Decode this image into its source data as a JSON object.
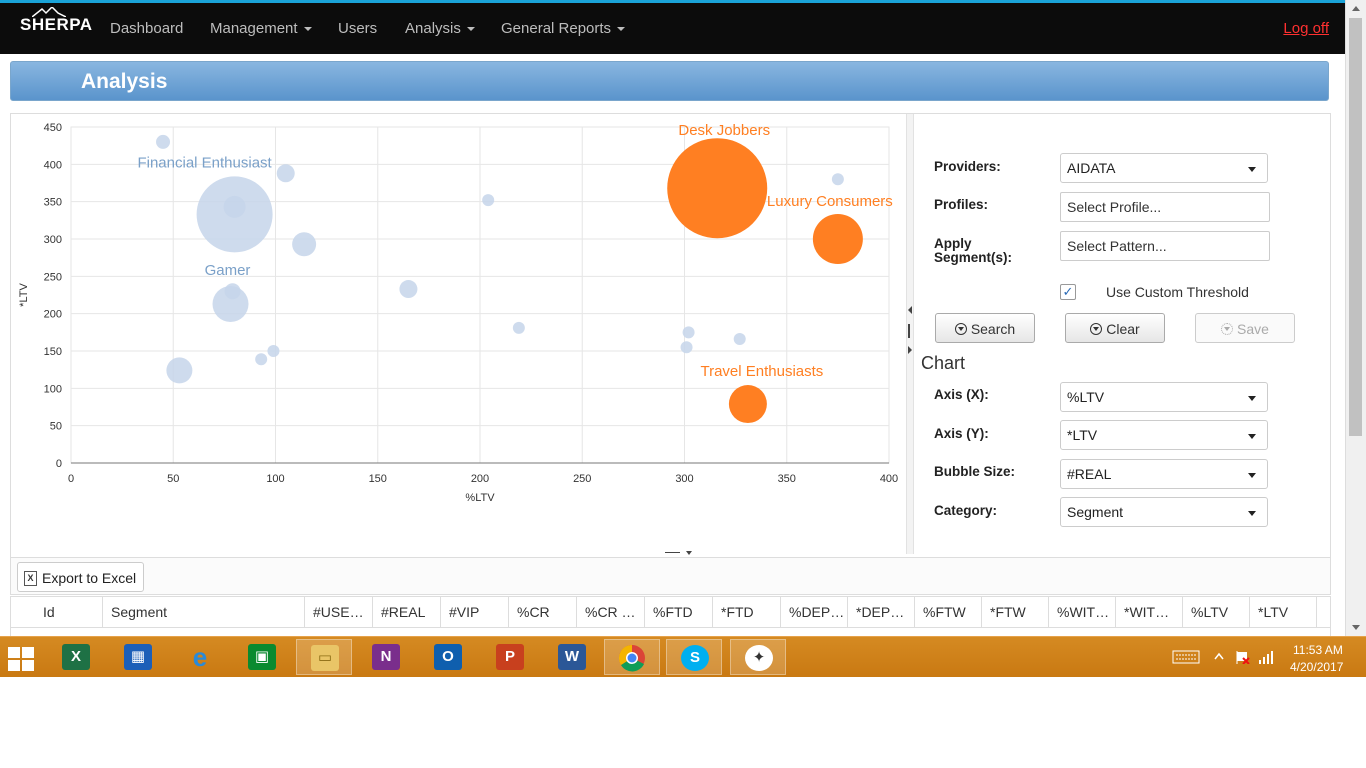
{
  "nav": {
    "brand": "SHERPA",
    "items": [
      {
        "label": "Dashboard",
        "dropdown": false
      },
      {
        "label": "Management",
        "dropdown": true
      },
      {
        "label": "Users",
        "dropdown": false
      },
      {
        "label": "Analysis",
        "dropdown": true
      },
      {
        "label": "General Reports",
        "dropdown": true
      }
    ],
    "logoff": "Log off"
  },
  "page": {
    "title": "Analysis"
  },
  "chart_data": {
    "type": "scatter",
    "title": "",
    "xlabel": "%LTV",
    "ylabel": "*LTV",
    "xlim": [
      0,
      400
    ],
    "ylim": [
      0,
      450
    ],
    "xticks": [
      0,
      50,
      100,
      150,
      200,
      250,
      300,
      350,
      400
    ],
    "yticks": [
      0,
      50,
      100,
      150,
      200,
      250,
      300,
      350,
      400,
      450
    ],
    "grid": true,
    "colors": {
      "default": "#c5d5ea",
      "highlight": "#ff7f22",
      "label_default": "#7aa0c8",
      "label_highlight": "#ff7f22"
    },
    "points": [
      {
        "x": 45,
        "y": 430,
        "size": 7,
        "label": "",
        "highlight": false
      },
      {
        "x": 105,
        "y": 388,
        "size": 9,
        "label": "",
        "highlight": false
      },
      {
        "x": 80,
        "y": 333,
        "size": 38,
        "label": "Financial Enthusiast",
        "highlight": false
      },
      {
        "x": 80,
        "y": 343,
        "size": 11,
        "label": "",
        "highlight": false
      },
      {
        "x": 114,
        "y": 293,
        "size": 12,
        "label": "",
        "highlight": false
      },
      {
        "x": 78,
        "y": 213,
        "size": 18,
        "label": "Gamer",
        "highlight": false
      },
      {
        "x": 79,
        "y": 230,
        "size": 8,
        "label": "",
        "highlight": false
      },
      {
        "x": 53,
        "y": 124,
        "size": 13,
        "label": "",
        "highlight": false
      },
      {
        "x": 93,
        "y": 139,
        "size": 6,
        "label": "",
        "highlight": false
      },
      {
        "x": 99,
        "y": 150,
        "size": 6,
        "label": "",
        "highlight": false
      },
      {
        "x": 165,
        "y": 233,
        "size": 9,
        "label": "",
        "highlight": false
      },
      {
        "x": 204,
        "y": 352,
        "size": 6,
        "label": "",
        "highlight": false
      },
      {
        "x": 219,
        "y": 181,
        "size": 6,
        "label": "",
        "highlight": false
      },
      {
        "x": 301,
        "y": 155,
        "size": 6,
        "label": "",
        "highlight": false
      },
      {
        "x": 302,
        "y": 175,
        "size": 6,
        "label": "",
        "highlight": false
      },
      {
        "x": 327,
        "y": 166,
        "size": 6,
        "label": "",
        "highlight": false
      },
      {
        "x": 375,
        "y": 380,
        "size": 6,
        "label": "",
        "highlight": false
      },
      {
        "x": 316,
        "y": 368,
        "size": 50,
        "label": "Desk Jobbers",
        "highlight": true
      },
      {
        "x": 375,
        "y": 300,
        "size": 25,
        "label": "Luxury Consumers",
        "highlight": true
      },
      {
        "x": 331,
        "y": 79,
        "size": 19,
        "label": "Travel Enthusiasts",
        "highlight": true
      }
    ]
  },
  "form": {
    "providers_label": "Providers:",
    "providers_value": "AIDATA",
    "profiles_label": "Profiles:",
    "profiles_placeholder": "Select Profile...",
    "segments_label": "Apply\nSegment(s):",
    "segments_placeholder": "Select Pattern...",
    "custom_threshold_label": "Use Custom Threshold",
    "custom_threshold_checked": "✓",
    "search_label": "Search",
    "clear_label": "Clear",
    "save_label": "Save",
    "chart_title": "Chart",
    "axis_x_label": "Axis (X):",
    "axis_x_value": "%LTV",
    "axis_y_label": "Axis (Y):",
    "axis_y_value": "*LTV",
    "bubble_label": "Bubble Size:",
    "bubble_value": "#REAL",
    "category_label": "Category:",
    "category_value": "Segment"
  },
  "grid": {
    "export_label": "Export to Excel",
    "columns": [
      "Id",
      "Segment",
      "#USE…",
      "#REAL",
      "#VIP",
      "%CR",
      "%CR …",
      "%FTD",
      "*FTD",
      "%DEP…",
      "*DEP…",
      "%FTW",
      "*FTW",
      "%WIT…",
      "*WIT…",
      "%LTV",
      "*LTV"
    ]
  },
  "taskbar": {
    "apps": [
      "windows-start",
      "excel",
      "windows-defender",
      "internet-explorer",
      "store",
      "file-explorer",
      "onenote",
      "outlook",
      "powerpoint",
      "word",
      "chrome",
      "skype",
      "app-runner"
    ],
    "time": "11:53 AM",
    "date": "4/20/2017"
  }
}
